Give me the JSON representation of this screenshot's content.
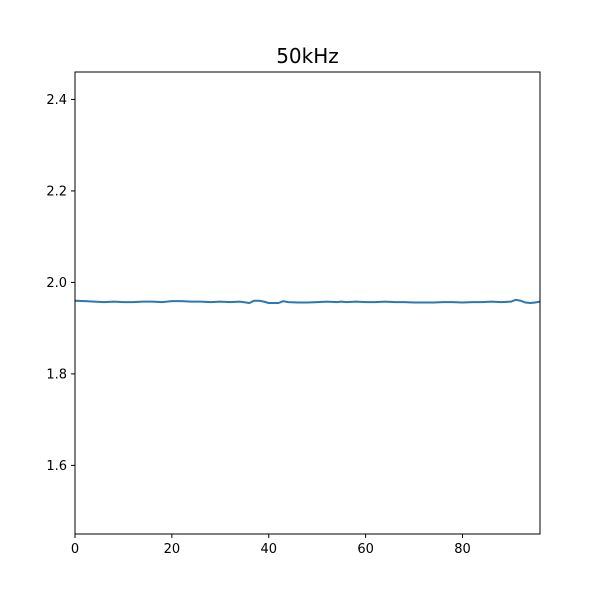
{
  "chart_data": {
    "type": "line",
    "title": "50kHz",
    "xlabel": "",
    "ylabel": "",
    "xlim": [
      0,
      96
    ],
    "ylim": [
      1.45,
      2.46
    ],
    "xticks": [
      0,
      20,
      40,
      60,
      80
    ],
    "xtick_labels": [
      "0",
      "20",
      "40",
      "60",
      "80"
    ],
    "yticks": [
      1.6,
      1.8,
      2.0,
      2.2,
      2.4
    ],
    "ytick_labels": [
      "1.6",
      "1.8",
      "2.0",
      "2.2",
      "2.4"
    ],
    "grid": false,
    "legend": "none",
    "series": [
      {
        "color": "#2a77b4",
        "x": [
          0,
          2,
          4,
          6,
          8,
          10,
          12,
          14,
          16,
          18,
          20,
          22,
          24,
          26,
          28,
          30,
          32,
          34,
          36,
          37,
          38,
          39,
          40,
          42,
          43,
          44,
          46,
          48,
          50,
          52,
          54,
          55,
          56,
          58,
          60,
          62,
          64,
          66,
          68,
          70,
          72,
          74,
          76,
          78,
          80,
          82,
          84,
          86,
          88,
          90,
          91,
          92,
          93,
          94,
          95,
          96
        ],
        "values": [
          1.96,
          1.959,
          1.958,
          1.957,
          1.958,
          1.957,
          1.957,
          1.958,
          1.958,
          1.957,
          1.959,
          1.959,
          1.958,
          1.958,
          1.957,
          1.958,
          1.957,
          1.958,
          1.955,
          1.96,
          1.96,
          1.958,
          1.955,
          1.955,
          1.959,
          1.957,
          1.956,
          1.956,
          1.957,
          1.958,
          1.957,
          1.958,
          1.957,
          1.958,
          1.957,
          1.957,
          1.958,
          1.957,
          1.957,
          1.956,
          1.956,
          1.956,
          1.957,
          1.957,
          1.956,
          1.957,
          1.957,
          1.958,
          1.957,
          1.958,
          1.962,
          1.96,
          1.956,
          1.955,
          1.956,
          1.958
        ]
      }
    ]
  }
}
